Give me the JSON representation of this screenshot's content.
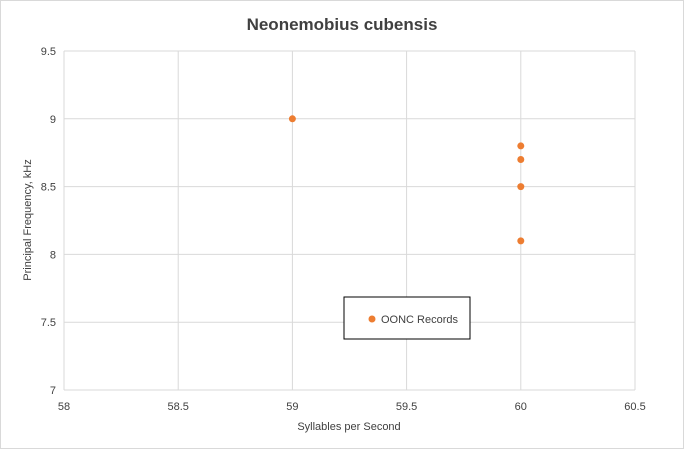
{
  "chart_data": {
    "type": "scatter",
    "title": "Neonemobius cubensis",
    "xlabel": "Syllables per Second",
    "ylabel": "Principal Frequency, kHz",
    "xlim": [
      58,
      60.5
    ],
    "ylim": [
      7,
      9.5
    ],
    "x_ticks": [
      "58",
      "58.5",
      "59",
      "59.5",
      "60",
      "60.5"
    ],
    "y_ticks": [
      "7",
      "7.5",
      "8",
      "8.5",
      "9",
      "9.5"
    ],
    "x_tick_values": [
      58,
      58.5,
      59,
      59.5,
      60,
      60.5
    ],
    "y_tick_values": [
      7,
      7.5,
      8,
      8.5,
      9,
      9.5
    ],
    "grid": true,
    "legend_position": "inside-bottom-center",
    "series": [
      {
        "name": "OONC Records",
        "color": "#ed7d31",
        "points": [
          {
            "x": 59,
            "y": 9.0
          },
          {
            "x": 60,
            "y": 8.8
          },
          {
            "x": 60,
            "y": 8.7
          },
          {
            "x": 60,
            "y": 8.5
          },
          {
            "x": 60,
            "y": 8.1
          }
        ]
      }
    ]
  }
}
